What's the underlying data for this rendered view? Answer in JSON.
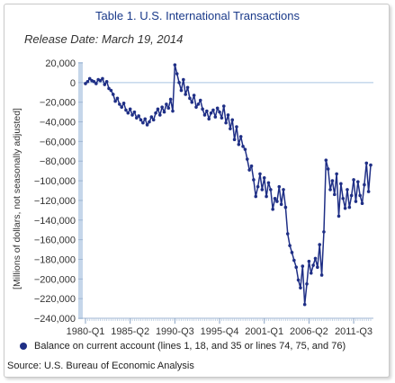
{
  "chart_data": {
    "type": "line",
    "title": "Table 1. U.S. International Transactions",
    "subtitle": "Release Date: March 19, 2014",
    "ylabel": "[Millions of dollars, not seasonally adjusted]",
    "ylim": [
      -240000,
      20000
    ],
    "yticks": [
      20000,
      0,
      -20000,
      -40000,
      -60000,
      -80000,
      -100000,
      -120000,
      -140000,
      -160000,
      -180000,
      -200000,
      -220000,
      -240000
    ],
    "ytick_labels": [
      "20,000",
      "0",
      "−20,000",
      "−40,000",
      "−60,000",
      "−80,000",
      "−100,000",
      "−120,000",
      "−140,000",
      "−160,000",
      "−180,000",
      "−200,000",
      "−220,000",
      "−240,000"
    ],
    "xtick_labels": [
      "1980-Q1",
      "1985-Q2",
      "1990-Q3",
      "1995-Q4",
      "2001-Q1",
      "2006-Q2",
      "2011-Q3"
    ],
    "xtick_indices": [
      0,
      21,
      42,
      63,
      84,
      105,
      126
    ],
    "grid": false,
    "legend_position": "bottom",
    "series": [
      {
        "name": "Balance on current account (lines 1, 18, and 35 or lines 74, 75, and 76)",
        "color": "#1f2f86",
        "values": [
          -1000,
          1000,
          4000,
          2000,
          1000,
          -1000,
          3000,
          2000,
          4000,
          -2000,
          1000,
          -6000,
          -8000,
          -12000,
          -19000,
          -16000,
          -22000,
          -25000,
          -21000,
          -28000,
          -31000,
          -27000,
          -33000,
          -30000,
          -36000,
          -34000,
          -38000,
          -41000,
          -37000,
          -43000,
          -40000,
          -35000,
          -38000,
          -31000,
          -27000,
          -33000,
          -25000,
          -30000,
          -22000,
          -26000,
          -17000,
          -29000,
          18000,
          9000,
          0,
          -8000,
          3000,
          -12000,
          -5000,
          -16000,
          -20000,
          -13000,
          -25000,
          -22000,
          -18000,
          -27000,
          -33000,
          -29000,
          -37000,
          -31000,
          -28000,
          -35000,
          -26000,
          -30000,
          -36000,
          -24000,
          -41000,
          -33000,
          -47000,
          -38000,
          -58000,
          -45000,
          -63000,
          -55000,
          -65000,
          -68000,
          -78000,
          -89000,
          -85000,
          -99000,
          -116000,
          -106000,
          -93000,
          -109000,
          -97000,
          -116000,
          -102000,
          -109000,
          -129000,
          -118000,
          -121000,
          -106000,
          -124000,
          -109000,
          -127000,
          -154000,
          -166000,
          -173000,
          -181000,
          -188000,
          -201000,
          -209000,
          -187000,
          -226000,
          -205000,
          -182000,
          -194000,
          -186000,
          -179000,
          -188000,
          -165000,
          -196000,
          -152000,
          -79000,
          -88000,
          -109000,
          -100000,
          -114000,
          -93000,
          -136000,
          -103000,
          -118000,
          -128000,
          -109000,
          -127000,
          -115000,
          -99000,
          -121000,
          -101000,
          -115000,
          -123000,
          -104000,
          -82000,
          -111000,
          -84000
        ]
      }
    ]
  },
  "source": "Source: U.S. Bureau of Economic Analysis"
}
